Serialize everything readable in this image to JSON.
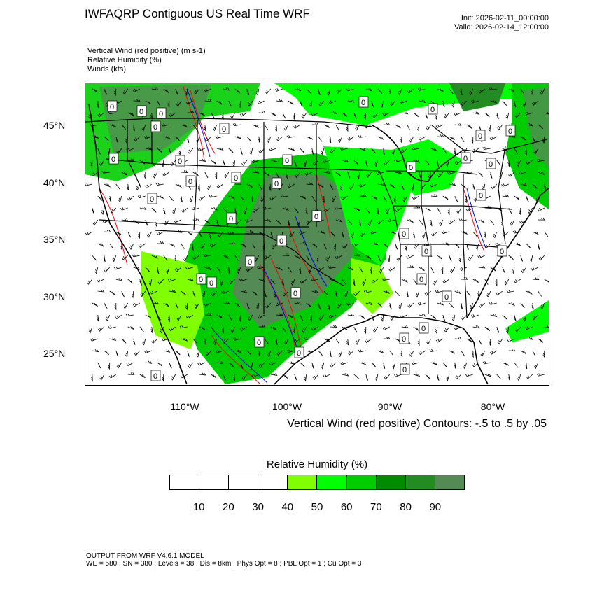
{
  "header": {
    "title": "IWFAQRP Contiguous US Real Time WRF",
    "init": "Init: 2026-02-11_00:00:00",
    "valid": "Valid: 2026-02-14_12:00:00"
  },
  "fields": [
    "Vertical Wind (red positive)   (m s-1)",
    "Relative Humidity   (%)",
    "Winds   (kts)"
  ],
  "map": {
    "lat_labels": [
      "45°N",
      "40°N",
      "35°N",
      "30°N",
      "25°N"
    ],
    "lon_labels": [
      "110°W",
      "100°W",
      "90°W",
      "80°W"
    ],
    "contour_label": "0",
    "contour_note": "Vertical Wind (red positive) Contours: -.5 to .5 by .05"
  },
  "colorbar": {
    "title": "Relative Humidity  (%)",
    "labels": [
      "10",
      "20",
      "30",
      "40",
      "50",
      "60",
      "70",
      "80",
      "90"
    ],
    "colors": [
      "#ffffff",
      "#ffffff",
      "#ffffff",
      "#ffffff",
      "#7fff00",
      "#00ff00",
      "#00cd00",
      "#008b00",
      "#228b22",
      "#548b54"
    ]
  },
  "footer": {
    "line1": "OUTPUT FROM WRF V4.6.1 MODEL",
    "line2": "WE = 580 ; SN = 380 ; Levels = 38 ; Dis = 8km ; Phys Opt = 8 ; PBL Opt = 1 ; Cu Opt = 3"
  }
}
